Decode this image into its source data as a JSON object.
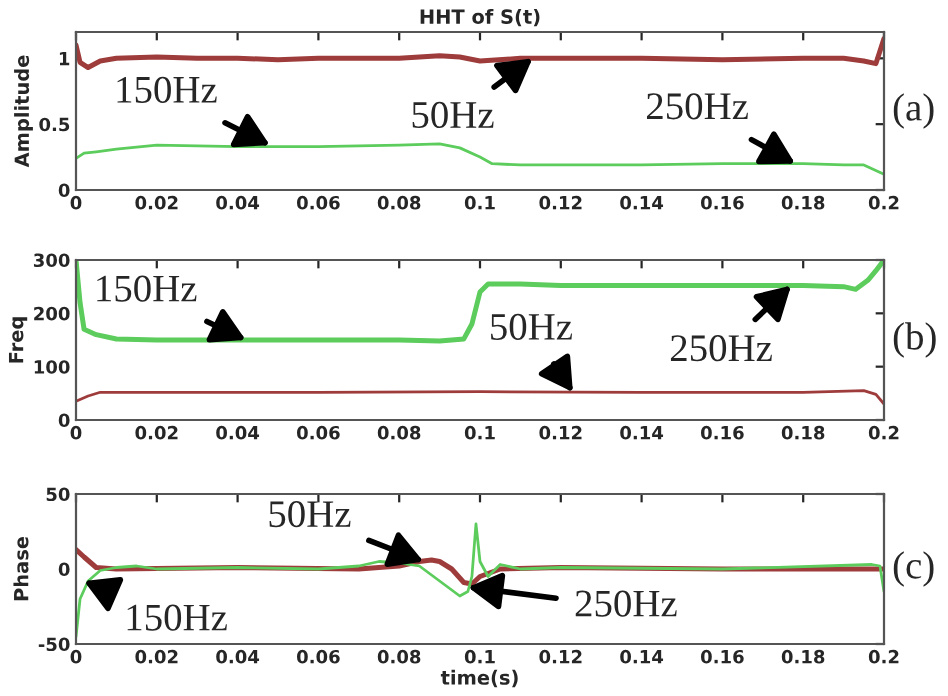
{
  "chart_data": [
    {
      "type": "line",
      "title": "HHT of S(t)",
      "ylabel": "Amplitude",
      "xlim": [
        0,
        0.2
      ],
      "ylim": [
        0,
        1.2
      ],
      "xticks": [
        0,
        0.02,
        0.04,
        0.06,
        0.08,
        0.1,
        0.12,
        0.14,
        0.16,
        0.18,
        0.2
      ],
      "yticks": [
        0,
        0.5,
        1
      ],
      "grid": false,
      "legend": false,
      "series": [
        {
          "color": "#9e3b3b",
          "x": [
            0,
            0.001,
            0.003,
            0.006,
            0.01,
            0.02,
            0.03,
            0.04,
            0.05,
            0.06,
            0.07,
            0.08,
            0.09,
            0.095,
            0.1,
            0.11,
            0.12,
            0.14,
            0.16,
            0.18,
            0.19,
            0.195,
            0.198,
            0.2
          ],
          "values": [
            1.1,
            0.97,
            0.93,
            0.98,
            1.0,
            1.01,
            1.0,
            1.0,
            0.99,
            1.0,
            1.0,
            1.0,
            1.02,
            1.01,
            0.98,
            1.0,
            1.0,
            1.0,
            0.99,
            1.0,
            1.0,
            0.98,
            0.96,
            1.15
          ]
        },
        {
          "color": "#5ccc5c",
          "x": [
            0,
            0.002,
            0.005,
            0.01,
            0.02,
            0.04,
            0.06,
            0.08,
            0.09,
            0.095,
            0.1,
            0.103,
            0.11,
            0.12,
            0.14,
            0.16,
            0.18,
            0.19,
            0.195,
            0.2
          ],
          "values": [
            0.24,
            0.28,
            0.29,
            0.31,
            0.34,
            0.33,
            0.33,
            0.34,
            0.35,
            0.32,
            0.25,
            0.2,
            0.19,
            0.19,
            0.19,
            0.2,
            0.2,
            0.19,
            0.19,
            0.12
          ]
        }
      ],
      "annotations": [
        {
          "text": "150Hz",
          "x": 0.048,
          "y": 0.34
        },
        {
          "text": "50Hz",
          "x": 0.113,
          "y": 1.0
        },
        {
          "text": "250Hz",
          "x": 0.178,
          "y": 0.2
        },
        "(a)"
      ]
    },
    {
      "type": "line",
      "ylabel": "Freq",
      "xlim": [
        0,
        0.2
      ],
      "ylim": [
        0,
        300
      ],
      "xticks": [
        0,
        0.02,
        0.04,
        0.06,
        0.08,
        0.1,
        0.12,
        0.14,
        0.16,
        0.18,
        0.2
      ],
      "yticks": [
        0,
        100,
        200,
        300
      ],
      "grid": false,
      "legend": false,
      "series": [
        {
          "color": "#5ccc5c",
          "x": [
            0,
            0.001,
            0.002,
            0.005,
            0.01,
            0.02,
            0.04,
            0.06,
            0.08,
            0.09,
            0.096,
            0.098,
            0.1,
            0.102,
            0.11,
            0.12,
            0.14,
            0.16,
            0.18,
            0.19,
            0.193,
            0.196,
            0.198,
            0.2
          ],
          "values": [
            300,
            220,
            170,
            160,
            152,
            150,
            150,
            150,
            150,
            148,
            152,
            180,
            240,
            255,
            255,
            252,
            252,
            252,
            252,
            250,
            245,
            262,
            280,
            300
          ]
        },
        {
          "color": "#9e3b3b",
          "x": [
            0,
            0.003,
            0.006,
            0.02,
            0.06,
            0.1,
            0.14,
            0.18,
            0.195,
            0.198,
            0.2
          ],
          "values": [
            35,
            45,
            52,
            52,
            52,
            53,
            52,
            52,
            55,
            48,
            30
          ]
        }
      ],
      "annotations": [
        {
          "text": "150Hz",
          "x": 0.042,
          "y": 150
        },
        {
          "text": "50Hz",
          "x": 0.123,
          "y": 52
        },
        {
          "text": "250Hz",
          "x": 0.177,
          "y": 252
        },
        "(b)"
      ]
    },
    {
      "type": "line",
      "ylabel": "Phase",
      "xlabel": "time(s)",
      "xlim": [
        0,
        0.2
      ],
      "ylim": [
        -50,
        50
      ],
      "xticks": [
        0,
        0.02,
        0.04,
        0.06,
        0.08,
        0.1,
        0.12,
        0.14,
        0.16,
        0.18,
        0.2
      ],
      "yticks": [
        -50,
        0,
        50
      ],
      "grid": false,
      "legend": false,
      "series": [
        {
          "color": "#9e3b3b",
          "x": [
            0,
            0.002,
            0.005,
            0.01,
            0.04,
            0.07,
            0.08,
            0.085,
            0.088,
            0.09,
            0.093,
            0.096,
            0.098,
            0.1,
            0.105,
            0.12,
            0.16,
            0.2
          ],
          "values": [
            13,
            8,
            1,
            0,
            1,
            0,
            2,
            5,
            6,
            5,
            0,
            -9,
            -10,
            -5,
            0,
            1,
            0,
            0
          ]
        },
        {
          "color": "#5ccc5c",
          "x": [
            0,
            0.001,
            0.003,
            0.006,
            0.01,
            0.015,
            0.02,
            0.04,
            0.06,
            0.07,
            0.075,
            0.08,
            0.085,
            0.09,
            0.095,
            0.097,
            0.098,
            0.099,
            0.1,
            0.102,
            0.105,
            0.11,
            0.12,
            0.16,
            0.197,
            0.199,
            0.2
          ],
          "values": [
            -45,
            -20,
            -8,
            -1,
            1,
            2,
            0,
            1,
            0,
            2,
            5,
            4,
            2,
            -8,
            -18,
            -15,
            -5,
            30,
            5,
            -5,
            3,
            0,
            1,
            0,
            3,
            2,
            -15
          ]
        }
      ],
      "annotations": [
        {
          "text": "50Hz",
          "x": 0.086,
          "y": 5
        },
        {
          "text": "150Hz",
          "x": 0.002,
          "y": -8
        },
        {
          "text": "250Hz",
          "x": 0.097,
          "y": -12
        },
        "(c)"
      ]
    }
  ]
}
